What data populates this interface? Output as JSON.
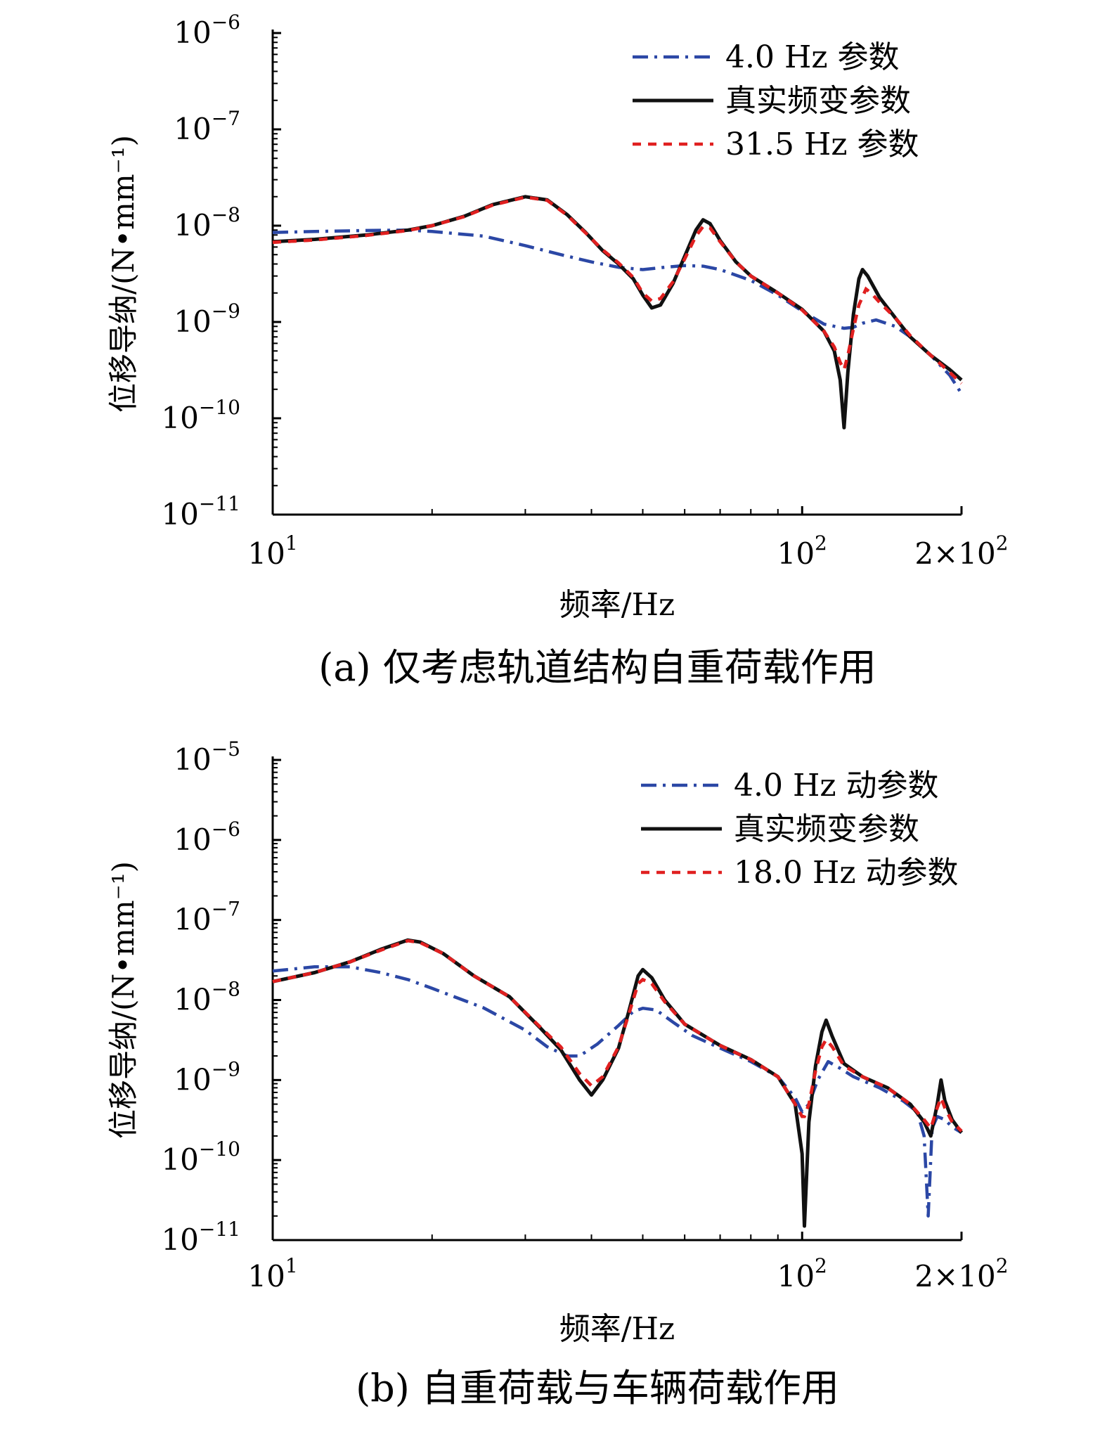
{
  "chart_data": [
    {
      "type": "line",
      "caption": "(a) 仅考虑轨道结构自重荷载作用",
      "xlabel": "频率/Hz",
      "ylabel": "位移导纳/(N•mm⁻¹)",
      "xscale": "log",
      "yscale": "log",
      "xlim": [
        10,
        200
      ],
      "ylim": [
        1e-11,
        1e-06
      ],
      "x_ticks": [
        {
          "value": 10,
          "base": "10",
          "exp": "1"
        },
        {
          "value": 100,
          "base": "10",
          "exp": "2"
        },
        {
          "value": 200,
          "base": "2×10",
          "exp": "2"
        }
      ],
      "y_ticks": [
        {
          "value": 1e-06,
          "base": "10",
          "exp": "−6"
        },
        {
          "value": 1e-07,
          "base": "10",
          "exp": "−7"
        },
        {
          "value": 1e-08,
          "base": "10",
          "exp": "−8"
        },
        {
          "value": 1e-09,
          "base": "10",
          "exp": "−9"
        },
        {
          "value": 1e-10,
          "base": "10",
          "exp": "−10"
        },
        {
          "value": 1e-11,
          "base": "10",
          "exp": "−11"
        }
      ],
      "legend_position": "top-right",
      "series": [
        {
          "name": "4.0 Hz 参数",
          "color": "#2b47a5",
          "style": "dashdot",
          "points": [
            [
              10,
              8.5e-09
            ],
            [
              12,
              8.7e-09
            ],
            [
              15,
              8.9e-09
            ],
            [
              18,
              9e-09
            ],
            [
              20,
              8.7e-09
            ],
            [
              25,
              7.8e-09
            ],
            [
              30,
              6.2e-09
            ],
            [
              35,
              5e-09
            ],
            [
              40,
              4.2e-09
            ],
            [
              45,
              3.7e-09
            ],
            [
              50,
              3.5e-09
            ],
            [
              55,
              3.7e-09
            ],
            [
              60,
              3.85e-09
            ],
            [
              65,
              3.8e-09
            ],
            [
              70,
              3.5e-09
            ],
            [
              80,
              2.7e-09
            ],
            [
              90,
              1.9e-09
            ],
            [
              100,
              1.3e-09
            ],
            [
              110,
              9.5e-10
            ],
            [
              120,
              8.6e-10
            ],
            [
              125,
              8.8e-10
            ],
            [
              130,
              9.7e-10
            ],
            [
              138,
              1.05e-09
            ],
            [
              150,
              9e-10
            ],
            [
              160,
              7e-10
            ],
            [
              175,
              4.5e-10
            ],
            [
              190,
              2.8e-10
            ],
            [
              200,
              1.8e-10
            ]
          ]
        },
        {
          "name": "真实频变参数",
          "color": "#111111",
          "style": "solid",
          "points": [
            [
              10,
              6.8e-09
            ],
            [
              12,
              7.2e-09
            ],
            [
              15,
              8e-09
            ],
            [
              18,
              9e-09
            ],
            [
              20,
              1e-08
            ],
            [
              23,
              1.25e-08
            ],
            [
              26,
              1.65e-08
            ],
            [
              30,
              2e-08
            ],
            [
              33,
              1.85e-08
            ],
            [
              36,
              1.3e-08
            ],
            [
              39,
              8.5e-09
            ],
            [
              42,
              5.5e-09
            ],
            [
              45,
              4e-09
            ],
            [
              48,
              2.8e-09
            ],
            [
              50,
              1.9e-09
            ],
            [
              52,
              1.4e-09
            ],
            [
              54,
              1.5e-09
            ],
            [
              57,
              2.5e-09
            ],
            [
              60,
              4.8e-09
            ],
            [
              63,
              9e-09
            ],
            [
              65,
              1.15e-08
            ],
            [
              67,
              1.05e-08
            ],
            [
              70,
              7e-09
            ],
            [
              75,
              4.2e-09
            ],
            [
              80,
              3e-09
            ],
            [
              90,
              2e-09
            ],
            [
              100,
              1.35e-09
            ],
            [
              110,
              8e-10
            ],
            [
              115,
              5e-10
            ],
            [
              118,
              2.5e-10
            ],
            [
              120,
              8e-11
            ],
            [
              122,
              3e-10
            ],
            [
              125,
              1.2e-09
            ],
            [
              128,
              2.8e-09
            ],
            [
              130,
              3.5e-09
            ],
            [
              133,
              3e-09
            ],
            [
              140,
              1.8e-09
            ],
            [
              150,
              1.1e-09
            ],
            [
              160,
              7e-10
            ],
            [
              175,
              4.5e-10
            ],
            [
              190,
              3.2e-10
            ],
            [
              200,
              2.5e-10
            ]
          ]
        },
        {
          "name": "31.5 Hz 参数",
          "color": "#e02020",
          "style": "dashed",
          "points": [
            [
              10,
              6.7e-09
            ],
            [
              12,
              7.1e-09
            ],
            [
              15,
              7.9e-09
            ],
            [
              18,
              8.9e-09
            ],
            [
              20,
              1e-08
            ],
            [
              23,
              1.24e-08
            ],
            [
              26,
              1.63e-08
            ],
            [
              30,
              1.98e-08
            ],
            [
              33,
              1.83e-08
            ],
            [
              36,
              1.28e-08
            ],
            [
              39,
              8.4e-09
            ],
            [
              42,
              5.6e-09
            ],
            [
              45,
              4.1e-09
            ],
            [
              48,
              2.9e-09
            ],
            [
              50,
              2e-09
            ],
            [
              52,
              1.65e-09
            ],
            [
              54,
              1.75e-09
            ],
            [
              57,
              2.6e-09
            ],
            [
              60,
              4.5e-09
            ],
            [
              63,
              7.8e-09
            ],
            [
              65,
              9.8e-09
            ],
            [
              67,
              9.5e-09
            ],
            [
              70,
              6.8e-09
            ],
            [
              75,
              4.2e-09
            ],
            [
              80,
              3e-09
            ],
            [
              90,
              2e-09
            ],
            [
              100,
              1.33e-09
            ],
            [
              110,
              8e-10
            ],
            [
              115,
              5.5e-10
            ],
            [
              118,
              3.8e-10
            ],
            [
              120,
              3.2e-10
            ],
            [
              122,
              4.5e-10
            ],
            [
              125,
              8.5e-10
            ],
            [
              128,
              1.5e-09
            ],
            [
              132,
              2.2e-09
            ],
            [
              135,
              2e-09
            ],
            [
              140,
              1.6e-09
            ],
            [
              150,
              1.1e-09
            ],
            [
              160,
              7.2e-10
            ],
            [
              175,
              4.5e-10
            ],
            [
              190,
              3e-10
            ],
            [
              200,
              2.3e-10
            ]
          ]
        }
      ]
    },
    {
      "type": "line",
      "caption": "(b) 自重荷载与车辆荷载作用",
      "xlabel": "频率/Hz",
      "ylabel": "位移导纳/(N•mm⁻¹)",
      "xscale": "log",
      "yscale": "log",
      "xlim": [
        10,
        200
      ],
      "ylim": [
        1e-11,
        1e-05
      ],
      "x_ticks": [
        {
          "value": 10,
          "base": "10",
          "exp": "1"
        },
        {
          "value": 100,
          "base": "10",
          "exp": "2"
        },
        {
          "value": 200,
          "base": "2×10",
          "exp": "2"
        }
      ],
      "y_ticks": [
        {
          "value": 1e-05,
          "base": "10",
          "exp": "−5"
        },
        {
          "value": 1e-06,
          "base": "10",
          "exp": "−6"
        },
        {
          "value": 1e-07,
          "base": "10",
          "exp": "−7"
        },
        {
          "value": 1e-08,
          "base": "10",
          "exp": "−8"
        },
        {
          "value": 1e-09,
          "base": "10",
          "exp": "−9"
        },
        {
          "value": 1e-10,
          "base": "10",
          "exp": "−10"
        },
        {
          "value": 1e-11,
          "base": "10",
          "exp": "−11"
        }
      ],
      "legend_position": "top-right",
      "series": [
        {
          "name": "4.0 Hz 动参数",
          "color": "#2b47a5",
          "style": "dashdot",
          "points": [
            [
              10,
              2.3e-08
            ],
            [
              12,
              2.6e-08
            ],
            [
              14,
              2.6e-08
            ],
            [
              16,
              2.2e-08
            ],
            [
              18,
              1.8e-08
            ],
            [
              20,
              1.4e-08
            ],
            [
              25,
              8e-09
            ],
            [
              30,
              4.2e-09
            ],
            [
              33,
              2.6e-09
            ],
            [
              36,
              2e-09
            ],
            [
              38,
              2e-09
            ],
            [
              41,
              2.8e-09
            ],
            [
              45,
              4.8e-09
            ],
            [
              48,
              7.2e-09
            ],
            [
              50,
              7.9e-09
            ],
            [
              53,
              7.5e-09
            ],
            [
              57,
              5.3e-09
            ],
            [
              62,
              3.6e-09
            ],
            [
              70,
              2.5e-09
            ],
            [
              80,
              1.7e-09
            ],
            [
              90,
              1.1e-09
            ],
            [
              97,
              6e-10
            ],
            [
              100,
              4e-10
            ],
            [
              103,
              5e-10
            ],
            [
              107,
              1e-09
            ],
            [
              112,
              1.7e-09
            ],
            [
              118,
              1.4e-09
            ],
            [
              125,
              1.1e-09
            ],
            [
              140,
              8e-10
            ],
            [
              155,
              5.5e-10
            ],
            [
              165,
              4e-10
            ],
            [
              170,
              2e-10
            ],
            [
              173,
              2e-11
            ],
            [
              176,
              2.5e-10
            ],
            [
              180,
              3.5e-10
            ],
            [
              186,
              3.2e-10
            ],
            [
              192,
              2.6e-10
            ],
            [
              200,
              2.2e-10
            ]
          ]
        },
        {
          "name": "真实频变参数",
          "color": "#111111",
          "style": "solid",
          "points": [
            [
              10,
              1.7e-08
            ],
            [
              12,
              2.2e-08
            ],
            [
              14,
              3e-08
            ],
            [
              16,
              4.3e-08
            ],
            [
              18,
              5.6e-08
            ],
            [
              19,
              5.3e-08
            ],
            [
              21,
              3.8e-08
            ],
            [
              24,
              2e-08
            ],
            [
              28,
              1.1e-08
            ],
            [
              32,
              4.5e-09
            ],
            [
              35,
              2.4e-09
            ],
            [
              38,
              1e-09
            ],
            [
              40,
              6.5e-10
            ],
            [
              42,
              1e-09
            ],
            [
              45,
              2.5e-09
            ],
            [
              47,
              7e-09
            ],
            [
              49,
              2e-08
            ],
            [
              50,
              2.4e-08
            ],
            [
              52,
              1.9e-08
            ],
            [
              55,
              1e-08
            ],
            [
              60,
              5e-09
            ],
            [
              70,
              2.7e-09
            ],
            [
              80,
              1.8e-09
            ],
            [
              90,
              1.1e-09
            ],
            [
              97,
              5e-10
            ],
            [
              100,
              1.2e-10
            ],
            [
              101,
              1.5e-11
            ],
            [
              103,
              3e-10
            ],
            [
              106,
              1.5e-09
            ],
            [
              109,
              4e-09
            ],
            [
              111,
              5.6e-09
            ],
            [
              114,
              3.5e-09
            ],
            [
              120,
              1.6e-09
            ],
            [
              130,
              1.1e-09
            ],
            [
              145,
              8e-10
            ],
            [
              160,
              5e-10
            ],
            [
              170,
              3e-10
            ],
            [
              175,
              2e-10
            ],
            [
              180,
              5e-10
            ],
            [
              183,
              1e-09
            ],
            [
              186,
              5.5e-10
            ],
            [
              192,
              3.2e-10
            ],
            [
              200,
              2.2e-10
            ]
          ]
        },
        {
          "name": "18.0 Hz 动参数",
          "color": "#e02020",
          "style": "dashed",
          "points": [
            [
              10,
              1.7e-08
            ],
            [
              12,
              2.2e-08
            ],
            [
              14,
              3e-08
            ],
            [
              16,
              4.2e-08
            ],
            [
              18,
              5.5e-08
            ],
            [
              19,
              5.2e-08
            ],
            [
              21,
              3.8e-08
            ],
            [
              24,
              2e-08
            ],
            [
              28,
              1.1e-08
            ],
            [
              32,
              4.6e-09
            ],
            [
              35,
              2.6e-09
            ],
            [
              38,
              1.2e-09
            ],
            [
              40,
              8.5e-10
            ],
            [
              42,
              1.1e-09
            ],
            [
              45,
              2.6e-09
            ],
            [
              47,
              6.5e-09
            ],
            [
              49,
              1.6e-08
            ],
            [
              50,
              1.8e-08
            ],
            [
              52,
              1.6e-08
            ],
            [
              55,
              9.5e-09
            ],
            [
              60,
              5e-09
            ],
            [
              70,
              2.7e-09
            ],
            [
              80,
              1.8e-09
            ],
            [
              90,
              1.1e-09
            ],
            [
              97,
              5e-10
            ],
            [
              100,
              3.5e-10
            ],
            [
              101,
              3.5e-10
            ],
            [
              103,
              5e-10
            ],
            [
              106,
              1.3e-09
            ],
            [
              109,
              2.6e-09
            ],
            [
              111,
              3.2e-09
            ],
            [
              114,
              2.6e-09
            ],
            [
              120,
              1.5e-09
            ],
            [
              130,
              1.1e-09
            ],
            [
              145,
              8e-10
            ],
            [
              160,
              5e-10
            ],
            [
              170,
              3.2e-10
            ],
            [
              175,
              2.5e-10
            ],
            [
              180,
              4.5e-10
            ],
            [
              183,
              6e-10
            ],
            [
              186,
              4.5e-10
            ],
            [
              192,
              3e-10
            ],
            [
              200,
              2.3e-10
            ]
          ]
        }
      ]
    }
  ]
}
